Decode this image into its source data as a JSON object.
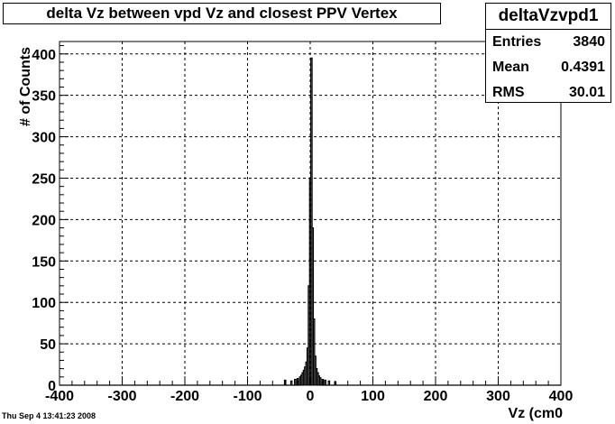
{
  "title": "delta Vz between vpd Vz and closest PPV Vertex",
  "stats": {
    "name": "deltaVzvpd1",
    "rows": [
      {
        "label": "Entries",
        "value": "3840"
      },
      {
        "label": "Mean",
        "value": "0.4391"
      },
      {
        "label": "RMS",
        "value": "30.01"
      }
    ]
  },
  "timestamp": "Thu Sep  4 13:41:23 2008",
  "chart_data": {
    "type": "histogram",
    "title": "delta Vz between vpd Vz and closest PPV Vertex",
    "xlabel": "Vz (cm0",
    "ylabel": "# of Counts",
    "xlim": [
      -400,
      400
    ],
    "ylim": [
      0,
      415
    ],
    "x_ticks": [
      -400,
      -300,
      -200,
      -100,
      0,
      100,
      200,
      300,
      400
    ],
    "y_ticks": [
      0,
      50,
      100,
      150,
      200,
      250,
      300,
      350,
      400
    ],
    "x_tick_labels": [
      "-400",
      "-300",
      "-200",
      "-100",
      "0",
      "100",
      "200",
      "300",
      "400"
    ],
    "y_tick_labels": [
      "0",
      "50",
      "100",
      "150",
      "200",
      "250",
      "300",
      "350",
      "400"
    ],
    "grid": true,
    "bin_width": 2,
    "series": [
      {
        "bins": [
          [
            -40,
            6
          ],
          [
            -30,
            5
          ],
          [
            -24,
            7
          ],
          [
            -20,
            8
          ],
          [
            -16,
            10
          ],
          [
            -14,
            12
          ],
          [
            -12,
            15
          ],
          [
            -10,
            18
          ],
          [
            -8,
            22
          ],
          [
            -6,
            28
          ],
          [
            -4,
            45
          ],
          [
            -2,
            120
          ],
          [
            0,
            250
          ],
          [
            2,
            395
          ],
          [
            4,
            190
          ],
          [
            6,
            80
          ],
          [
            8,
            35
          ],
          [
            10,
            20
          ],
          [
            12,
            15
          ],
          [
            14,
            11
          ],
          [
            16,
            9
          ],
          [
            20,
            7
          ],
          [
            24,
            6
          ],
          [
            30,
            5
          ],
          [
            40,
            4
          ]
        ]
      }
    ]
  }
}
